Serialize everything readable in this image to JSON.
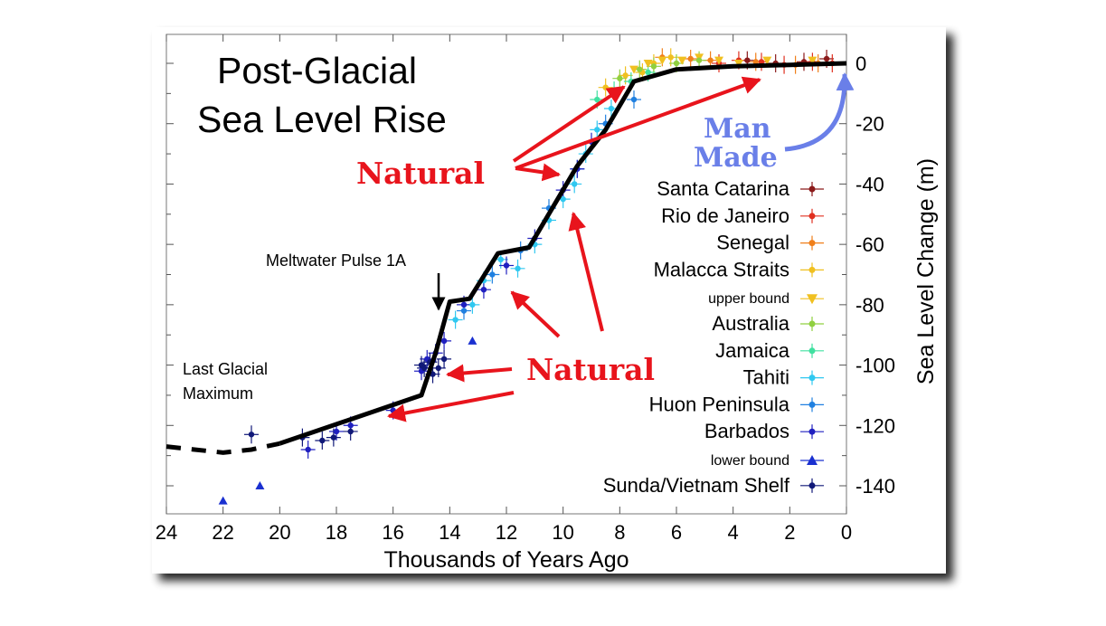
{
  "chart_data": {
    "type": "scatter",
    "title": "Post-Glacial Sea Level Rise",
    "xlabel": "Thousands of Years Ago",
    "ylabel": "Sea Level Change (m)",
    "xlim": [
      24,
      0
    ],
    "ylim": [
      -150,
      10
    ],
    "x_ticks": [
      24,
      22,
      20,
      18,
      16,
      14,
      12,
      10,
      8,
      6,
      4,
      2,
      0
    ],
    "y_ticks": [
      0,
      -20,
      -40,
      -60,
      -80,
      -100,
      -120,
      -140
    ],
    "grid": false,
    "legend_position": "right",
    "trend": {
      "name": "",
      "x": [
        20,
        15,
        14.5,
        14,
        13.3,
        12.3,
        11.2,
        9.5,
        8.5,
        7.5,
        6,
        4,
        2,
        0
      ],
      "y": [
        -126,
        -110,
        -96,
        -79,
        -78,
        -63,
        -61,
        -34,
        -22,
        -6,
        -2,
        -1,
        -0.5,
        0
      ]
    },
    "trend_dashed": {
      "x": [
        24,
        23,
        22,
        21,
        20
      ],
      "y": [
        -127,
        -128,
        -129,
        -128,
        -126
      ]
    },
    "series": [
      {
        "name": "Santa Catarina",
        "color": "#8b1a1a",
        "marker": "dot",
        "points": [
          [
            3.5,
            1
          ],
          [
            2.5,
            0
          ],
          [
            1.5,
            0.5
          ],
          [
            0.7,
            1.5
          ]
        ]
      },
      {
        "name": "Rio de Janeiro",
        "color": "#e03020",
        "marker": "dot",
        "points": [
          [
            4.5,
            0
          ],
          [
            3.8,
            1
          ],
          [
            3,
            0.5
          ],
          [
            2.2,
            -0.5
          ],
          [
            1.2,
            0.5
          ],
          [
            0.5,
            0
          ]
        ]
      },
      {
        "name": "Senegal",
        "color": "#f07f1a",
        "marker": "dot",
        "points": [
          [
            6.5,
            2
          ],
          [
            5.5,
            1.5
          ],
          [
            4.8,
            1
          ],
          [
            3.2,
            0.5
          ],
          [
            1.8,
            -0.5
          ],
          [
            1,
            0
          ]
        ]
      },
      {
        "name": "Malacca Straits",
        "color": "#f0c020",
        "marker": "dot",
        "points": [
          [
            8.5,
            -8
          ],
          [
            7.8,
            -4
          ],
          [
            7.2,
            -3
          ],
          [
            6.8,
            0
          ],
          [
            6.2,
            2
          ]
        ]
      },
      {
        "name": "upper bound",
        "color": "#f0c020",
        "marker": "triangle-down",
        "points": [
          [
            8.2,
            -10
          ],
          [
            7.5,
            -2
          ],
          [
            7,
            0
          ],
          [
            6.5,
            1
          ],
          [
            5.8,
            1
          ],
          [
            5.2,
            2
          ],
          [
            4.5,
            1
          ],
          [
            3.8,
            0
          ],
          [
            2.8,
            1
          ],
          [
            1.2,
            1
          ]
        ]
      },
      {
        "name": "Australia",
        "color": "#90d040",
        "marker": "dot",
        "points": [
          [
            8,
            -5
          ],
          [
            7.3,
            -2
          ],
          [
            6.8,
            -1
          ],
          [
            6,
            0
          ],
          [
            5.2,
            1
          ]
        ]
      },
      {
        "name": "Jamaica",
        "color": "#40e0a0",
        "marker": "dot",
        "points": [
          [
            8.8,
            -12
          ],
          [
            8.2,
            -9
          ],
          [
            7.6,
            -6
          ],
          [
            7,
            -3
          ]
        ]
      },
      {
        "name": "Tahiti",
        "color": "#30c8f0",
        "marker": "dot",
        "points": [
          [
            13.8,
            -85
          ],
          [
            13.2,
            -80
          ],
          [
            12.8,
            -72
          ],
          [
            12.2,
            -65
          ],
          [
            11.6,
            -68
          ],
          [
            11,
            -60
          ],
          [
            10.5,
            -52
          ],
          [
            10,
            -45
          ],
          [
            9.6,
            -40
          ],
          [
            9.2,
            -30
          ],
          [
            8.8,
            -22
          ],
          [
            8.3,
            -15
          ]
        ]
      },
      {
        "name": "Huon Peninsula",
        "color": "#2080e0",
        "marker": "dot",
        "points": [
          [
            13.5,
            -82
          ],
          [
            12.5,
            -70
          ],
          [
            11.5,
            -62
          ],
          [
            10.5,
            -48
          ],
          [
            9.5,
            -35
          ],
          [
            8.5,
            -20
          ],
          [
            7.5,
            -12
          ]
        ]
      },
      {
        "name": "Barbados",
        "color": "#2020c0",
        "marker": "dot",
        "points": [
          [
            19,
            -128
          ],
          [
            18,
            -122
          ],
          [
            17.5,
            -120
          ],
          [
            16,
            -115
          ],
          [
            15,
            -102
          ],
          [
            14.8,
            -98
          ],
          [
            14.5,
            -96
          ],
          [
            14.2,
            -92
          ],
          [
            13.5,
            -80
          ],
          [
            12.8,
            -75
          ],
          [
            12,
            -67
          ],
          [
            11,
            -58
          ],
          [
            10,
            -42
          ],
          [
            9.5,
            -35
          ],
          [
            9,
            -26
          ]
        ]
      },
      {
        "name": "lower bound",
        "color": "#1a30d0",
        "marker": "triangle-up",
        "points": [
          [
            22,
            -145
          ],
          [
            20.7,
            -140
          ],
          [
            13.2,
            -92
          ]
        ]
      },
      {
        "name": "Sunda/Vietnam Shelf",
        "color": "#101878",
        "marker": "dot",
        "points": [
          [
            21,
            -123
          ],
          [
            19.2,
            -124
          ],
          [
            18.5,
            -125
          ],
          [
            18.1,
            -124
          ],
          [
            17.5,
            -122
          ],
          [
            15,
            -100
          ],
          [
            14.9,
            -101
          ],
          [
            14.7,
            -99
          ],
          [
            14.6,
            -103
          ],
          [
            14.4,
            -101
          ],
          [
            14.2,
            -98
          ]
        ]
      }
    ],
    "annotations": {
      "meltwater": "Meltwater Pulse 1A",
      "lgm_line1": "Last Glacial",
      "lgm_line2": "Maximum",
      "natural_upper": "Natural",
      "natural_lower": "Natural",
      "manmade_line1": "Man",
      "manmade_line2": "Made"
    },
    "title_line1": "Post-Glacial",
    "title_line2": "Sea Level Rise",
    "colors": {
      "axis": "#000000",
      "trend": "#000000",
      "natural_text": "#e8141c",
      "natural_arrow": "#e8141c",
      "manmade": "#6a7fe8"
    }
  }
}
